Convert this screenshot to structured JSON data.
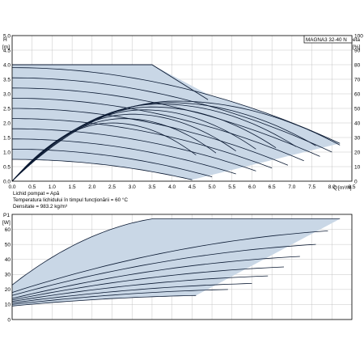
{
  "chart_data": [
    {
      "type": "line",
      "model_label": "MAGNA3 32-40 N",
      "ylabel": "H",
      "yunit": "[m]",
      "y2label": "eta",
      "y2unit": "[%]",
      "xlabel": "Q",
      "xunit": "[m³/h]",
      "xlim": [
        0,
        8.5
      ],
      "ylim": [
        0,
        5.0
      ],
      "y2lim": [
        0,
        100
      ],
      "xticks": [
        "0.0",
        "0.5",
        "1.0",
        "1.5",
        "2.0",
        "2.5",
        "3.0",
        "3.5",
        "4.0",
        "4.5",
        "5.0",
        "5.5",
        "6.0",
        "6.5",
        "7.0",
        "7.5",
        "8.0",
        "8.5"
      ],
      "yticks": [
        "0.0",
        "0.5",
        "1.0",
        "1.5",
        "2.0",
        "2.5",
        "3.0",
        "3.5",
        "4.0",
        "4.5",
        "5.0"
      ],
      "y2ticks": [
        "0",
        "10",
        "20",
        "30",
        "40",
        "50",
        "60",
        "70",
        "80",
        "90",
        "100"
      ],
      "grid": true,
      "shade_color": "#c9d7e6",
      "line_color": "#0b1a33",
      "series": [
        {
          "q_max": 3.5,
          "h_max": 4.0,
          "h_end": 4.0
        },
        {
          "q_max": 8.2,
          "h_max": 3.9,
          "h_end": 1.3
        },
        {
          "q_max": 8.0,
          "h_max": 3.55,
          "h_end": 1.0
        },
        {
          "q_max": 7.7,
          "h_max": 3.2,
          "h_end": 0.85
        },
        {
          "q_max": 7.3,
          "h_max": 2.85,
          "h_end": 0.7
        },
        {
          "q_max": 6.9,
          "h_max": 2.5,
          "h_end": 0.55
        },
        {
          "q_max": 6.5,
          "h_max": 2.15,
          "h_end": 0.45
        },
        {
          "q_max": 6.1,
          "h_max": 1.8,
          "h_end": 0.35
        },
        {
          "q_max": 5.6,
          "h_max": 1.45,
          "h_end": 0.25
        },
        {
          "q_max": 5.0,
          "h_max": 1.1,
          "h_end": 0.15
        },
        {
          "q_max": 4.5,
          "h_max": 0.75,
          "h_end": 0.05
        }
      ],
      "efficiency_series": [
        {
          "q_max": 8.2,
          "eta_max": 55,
          "q_peak": 4.1
        },
        {
          "q_max": 7.6,
          "eta_max": 54,
          "q_peak": 3.9
        },
        {
          "q_max": 7.1,
          "eta_max": 53,
          "q_peak": 3.7
        },
        {
          "q_max": 6.6,
          "eta_max": 51,
          "q_peak": 3.5
        },
        {
          "q_max": 6.1,
          "eta_max": 49,
          "q_peak": 3.3
        },
        {
          "q_max": 5.6,
          "eta_max": 46,
          "q_peak": 3.0
        },
        {
          "q_max": 5.1,
          "eta_max": 43,
          "q_peak": 2.8
        },
        {
          "q_max": 4.6,
          "eta_max": 40,
          "q_peak": 2.5
        }
      ]
    },
    {
      "type": "line",
      "ylabel": "P1",
      "yunit": "[W]",
      "ylim": [
        0,
        70
      ],
      "yticks": [
        "0",
        "10",
        "20",
        "30",
        "40",
        "50",
        "60"
      ],
      "grid": true,
      "shade_color": "#c9d7e6",
      "line_color": "#0b1a33",
      "series": [
        {
          "p_start": 23,
          "p_end": 67,
          "q_max": 3.5
        },
        {
          "p_start": 21,
          "p_end": 67,
          "q_max": 8.2
        },
        {
          "p_start": 18,
          "p_end": 59,
          "q_max": 7.9
        },
        {
          "p_start": 16,
          "p_end": 50,
          "q_max": 7.6
        },
        {
          "p_start": 14,
          "p_end": 42,
          "q_max": 7.2
        },
        {
          "p_start": 13,
          "p_end": 35,
          "q_max": 6.8
        },
        {
          "p_start": 12,
          "p_end": 29,
          "q_max": 6.4
        },
        {
          "p_start": 11,
          "p_end": 24,
          "q_max": 6.0
        },
        {
          "p_start": 10,
          "p_end": 20,
          "q_max": 5.4
        },
        {
          "p_start": 9,
          "p_end": 16,
          "q_max": 4.6
        }
      ]
    }
  ],
  "notes": {
    "line1": "Lichid pompat = Apă",
    "line2": "Temperatura lichidului în timpul funcţionării = 60 °C",
    "line3": "Densitate = 983.2 kg/m³"
  }
}
